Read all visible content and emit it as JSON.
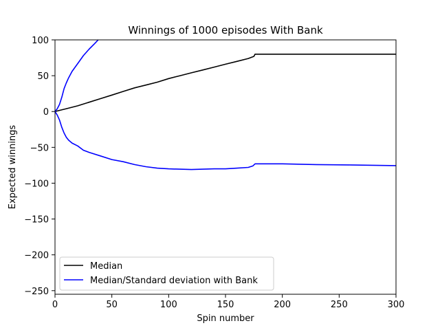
{
  "chart_data": {
    "type": "line",
    "title": "Winnings of 1000 episodes With Bank",
    "xlabel": "Spin number",
    "ylabel": "Expected winnings",
    "xlim": [
      0,
      300
    ],
    "ylim": [
      -255,
      100
    ],
    "xticks": [
      0,
      50,
      100,
      150,
      200,
      250,
      300
    ],
    "yticks": [
      100,
      50,
      0,
      -50,
      -100,
      -150,
      -200,
      -250
    ],
    "grid": false,
    "legend_position": "lower-left",
    "series": [
      {
        "name": "Median",
        "color": "#000000",
        "x": [
          0,
          5,
          10,
          20,
          30,
          40,
          50,
          60,
          70,
          80,
          90,
          100,
          110,
          120,
          130,
          140,
          150,
          160,
          170,
          175,
          176,
          200,
          250,
          300
        ],
        "y": [
          0,
          2,
          4,
          8,
          13,
          18,
          23,
          28,
          33,
          37,
          41,
          46,
          50,
          54,
          58,
          62,
          66,
          70,
          74,
          77,
          80,
          80,
          80,
          80
        ]
      },
      {
        "name": "Median/Standard deviation with Bank",
        "color": "#0000ff",
        "x": [
          0,
          2,
          4,
          6,
          8,
          10,
          12,
          15,
          20,
          25,
          30,
          35,
          38
        ],
        "y": [
          0,
          4,
          10,
          20,
          32,
          40,
          47,
          56,
          67,
          78,
          87,
          95,
          100
        ]
      },
      {
        "name": "",
        "color": "#0000ff",
        "x": [
          0,
          2,
          4,
          6,
          8,
          10,
          12,
          15,
          20,
          25,
          30,
          40,
          50,
          60,
          70,
          80,
          90,
          100,
          110,
          120,
          130,
          140,
          150,
          160,
          170,
          174,
          176,
          200,
          230,
          260,
          300
        ],
        "y": [
          0,
          -5,
          -12,
          -22,
          -30,
          -36,
          -40,
          -44,
          -48,
          -54,
          -57,
          -62,
          -67,
          -70,
          -74,
          -77,
          -79,
          -80,
          -80.5,
          -81,
          -80.5,
          -80,
          -80,
          -79,
          -78,
          -76,
          -73,
          -73,
          -74,
          -74.5,
          -75.5
        ]
      }
    ]
  }
}
